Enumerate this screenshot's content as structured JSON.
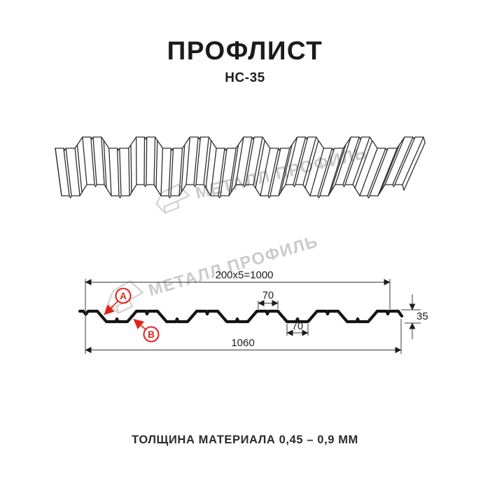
{
  "header": {
    "title": "ПРОФЛИСТ",
    "subtitle": "НС-35"
  },
  "footer": {
    "caption": "ТОЛЩИНА МАТЕРИАЛА 0,45 – 0,9 ММ"
  },
  "watermark": {
    "text": "МЕТАЛЛ ПРОФИЛЬ"
  },
  "diagram": {
    "dimensions": {
      "top_width": "200x5=1000",
      "overall_width": "1060",
      "profile_height": "35",
      "rib_top_width": "70",
      "rib_bottom_width": "70"
    },
    "labels": {
      "a": "А",
      "b": "В"
    },
    "colors": {
      "annotation_red": "#e32219",
      "line_black": "#1c1c1c",
      "watermark_gray": "#cbcbcb"
    }
  }
}
